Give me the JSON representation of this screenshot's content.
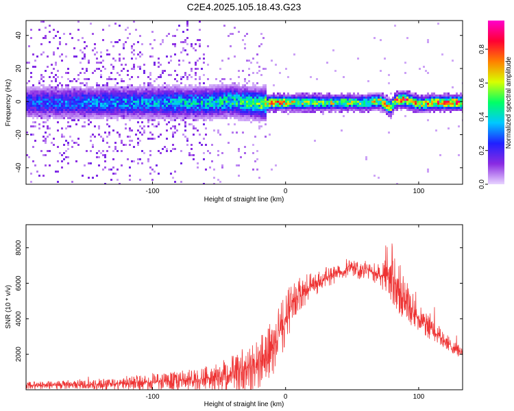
{
  "figure": {
    "title": "C2E4.2025.105.18.43.G23"
  },
  "chart_data": [
    {
      "type": "heatmap",
      "xlabel": "Height of straight line (km)",
      "ylabel": "Frequency (Hz)",
      "xlim": [
        -195,
        133
      ],
      "ylim": [
        -50,
        49
      ],
      "xticks": [
        -100,
        0,
        100
      ],
      "yticks": [
        -40,
        -20,
        0,
        20,
        40
      ],
      "grid": false,
      "colorbar": {
        "label": "Normalized spectral amplitude",
        "range": [
          0.0,
          0.97
        ],
        "ticks": [
          0.0,
          0.2,
          0.4,
          0.6,
          0.8
        ],
        "colors": [
          "#e8d4ff",
          "#8a2be2",
          "#2020ff",
          "#00c8ff",
          "#00ff66",
          "#d8ff00",
          "#ff8000",
          "#ff0033",
          "#ff00cc"
        ]
      },
      "ridge": {
        "description_points_x": [
          -195,
          -150,
          -100,
          -60,
          -40,
          -20,
          -10,
          0,
          20,
          40,
          60,
          70,
          78,
          82,
          88,
          95,
          100,
          110,
          120,
          133
        ],
        "frequency_hz": [
          0,
          0,
          0,
          0,
          1,
          -1,
          0,
          0,
          0,
          0,
          0,
          1,
          -3,
          1,
          2,
          0,
          -1,
          0,
          0,
          0
        ],
        "peak_amplitude": [
          0.3,
          0.35,
          0.4,
          0.45,
          0.5,
          0.55,
          0.85,
          0.75,
          0.6,
          0.65,
          0.6,
          0.7,
          0.75,
          0.85,
          0.9,
          0.8,
          0.75,
          0.8,
          0.85,
          0.85
        ]
      }
    },
    {
      "type": "line",
      "xlabel": "Height of straight line (km)",
      "ylabel": "SNR (10 * v/v)",
      "xlim": [
        -195,
        133
      ],
      "ylim": [
        0,
        9300
      ],
      "xticks": [
        -100,
        0,
        100
      ],
      "yticks": [
        2000,
        4000,
        6000,
        8000
      ],
      "grid": false,
      "series": [
        {
          "color": "#ee3333",
          "envelope_x": [
            -195,
            -180,
            -160,
            -140,
            -120,
            -100,
            -80,
            -70,
            -60,
            -50,
            -40,
            -30,
            -20,
            -15,
            -10,
            -5,
            0,
            5,
            10,
            20,
            30,
            40,
            50,
            55,
            60,
            70,
            75,
            80,
            85,
            90,
            95,
            100,
            110,
            120,
            133
          ],
          "mean": [
            250,
            260,
            280,
            300,
            360,
            420,
            520,
            560,
            650,
            750,
            900,
            1100,
            1500,
            1900,
            2200,
            3000,
            4000,
            4800,
            5200,
            5900,
            6300,
            6600,
            6900,
            6700,
            6800,
            6500,
            6300,
            6500,
            5600,
            5000,
            4600,
            4100,
            3400,
            2700,
            2050
          ],
          "spread": [
            200,
            220,
            250,
            300,
            380,
            450,
            550,
            600,
            700,
            900,
            1100,
            1300,
            1400,
            1500,
            1700,
            1700,
            1500,
            1200,
            1000,
            700,
            600,
            500,
            500,
            500,
            500,
            600,
            1000,
            1600,
            1400,
            1200,
            1000,
            900,
            700,
            500,
            300
          ]
        }
      ]
    }
  ]
}
